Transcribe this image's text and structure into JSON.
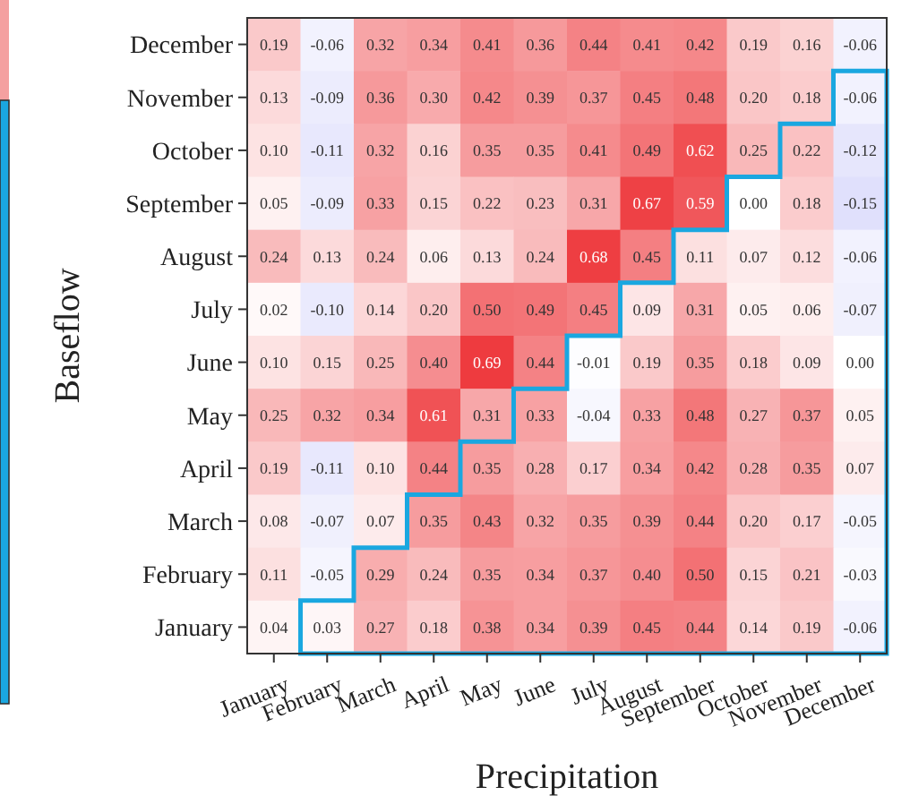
{
  "chart_data": {
    "type": "heatmap",
    "xlabel": "Precipitation",
    "ylabel": "Baseflow",
    "categories": [
      "January",
      "February",
      "March",
      "April",
      "May",
      "June",
      "July",
      "August",
      "September",
      "October",
      "November",
      "December"
    ],
    "y_categories": [
      "December",
      "November",
      "October",
      "September",
      "August",
      "July",
      "June",
      "May",
      "April",
      "March",
      "February",
      "January"
    ],
    "cells": [
      [
        0.19,
        -0.06,
        0.32,
        0.34,
        0.41,
        0.36,
        0.44,
        0.41,
        0.42,
        0.19,
        0.16,
        -0.06
      ],
      [
        0.13,
        -0.09,
        0.36,
        0.3,
        0.42,
        0.39,
        0.37,
        0.45,
        0.48,
        0.2,
        0.18,
        -0.06
      ],
      [
        0.1,
        -0.11,
        0.32,
        0.16,
        0.35,
        0.35,
        0.41,
        0.49,
        0.62,
        0.25,
        0.22,
        -0.12
      ],
      [
        0.05,
        -0.09,
        0.33,
        0.15,
        0.22,
        0.23,
        0.31,
        0.67,
        0.59,
        0.0,
        0.18,
        -0.15
      ],
      [
        0.24,
        0.13,
        0.24,
        0.06,
        0.13,
        0.24,
        0.68,
        0.45,
        0.11,
        0.07,
        0.12,
        -0.06
      ],
      [
        0.02,
        -0.1,
        0.14,
        0.2,
        0.5,
        0.49,
        0.45,
        0.09,
        0.31,
        0.05,
        0.06,
        -0.07
      ],
      [
        0.1,
        0.15,
        0.25,
        0.4,
        0.69,
        0.44,
        -0.01,
        0.19,
        0.35,
        0.18,
        0.09,
        0.0
      ],
      [
        0.25,
        0.32,
        0.34,
        0.61,
        0.31,
        0.33,
        -0.04,
        0.33,
        0.48,
        0.27,
        0.37,
        0.05
      ],
      [
        0.19,
        -0.11,
        0.1,
        0.44,
        0.35,
        0.28,
        0.17,
        0.34,
        0.42,
        0.28,
        0.35,
        0.07
      ],
      [
        0.08,
        -0.07,
        0.07,
        0.35,
        0.43,
        0.32,
        0.35,
        0.39,
        0.44,
        0.2,
        0.17,
        -0.05
      ],
      [
        0.11,
        -0.05,
        0.29,
        0.24,
        0.35,
        0.34,
        0.37,
        0.4,
        0.5,
        0.15,
        0.21,
        -0.03
      ],
      [
        0.04,
        0.03,
        0.27,
        0.18,
        0.38,
        0.34,
        0.39,
        0.45,
        0.44,
        0.14,
        0.19,
        -0.06
      ]
    ],
    "cell_labels": [
      [
        "0.19",
        "-0.06",
        "0.32",
        "0.34",
        "0.41",
        "0.36",
        "0.44",
        "0.41",
        "0.42",
        "0.19",
        "0.16",
        "-0.06"
      ],
      [
        "0.13",
        "-0.09",
        "0.36",
        "0.30",
        "0.42",
        "0.39",
        "0.37",
        "0.45",
        "0.48",
        "0.20",
        "0.18",
        "-0.06"
      ],
      [
        "0.10",
        "-0.11",
        "0.32",
        "0.16",
        "0.35",
        "0.35",
        "0.41",
        "0.49",
        "0.62",
        "0.25",
        "0.22",
        "-0.12"
      ],
      [
        "0.05",
        "-0.09",
        "0.33",
        "0.15",
        "0.22",
        "0.23",
        "0.31",
        "0.67",
        "0.59",
        "0.00",
        "0.18",
        "-0.15"
      ],
      [
        "0.24",
        "0.13",
        "0.24",
        "0.06",
        "0.13",
        "0.24",
        "0.68",
        "0.45",
        "0.11",
        "0.07",
        "0.12",
        "-0.06"
      ],
      [
        "0.02",
        "-0.10",
        "0.14",
        "0.20",
        "0.50",
        "0.49",
        "0.45",
        "0.09",
        "0.31",
        "0.05",
        "0.06",
        "-0.07"
      ],
      [
        "0.10",
        "0.15",
        "0.25",
        "0.40",
        "0.69",
        "0.44",
        "-0.01",
        "0.19",
        "0.35",
        "0.18",
        "0.09",
        "0.00"
      ],
      [
        "0.25",
        "0.32",
        "0.34",
        "0.61",
        "0.31",
        "0.33",
        "-0.04",
        "0.33",
        "0.48",
        "0.27",
        "0.37",
        "0.05"
      ],
      [
        "0.19",
        "-0.11",
        "0.10",
        "0.44",
        "0.35",
        "0.28",
        "0.17",
        "0.34",
        "0.42",
        "0.28",
        "0.35",
        "0.07"
      ],
      [
        "0.08",
        "-0.07",
        "0.07",
        "0.35",
        "0.43",
        "0.32",
        "0.35",
        "0.39",
        "0.44",
        "0.20",
        "0.17",
        "-0.05"
      ],
      [
        "0.11",
        "-0.05",
        "0.29",
        "0.24",
        "0.35",
        "0.34",
        "0.37",
        "0.40",
        "0.50",
        "0.15",
        "0.21",
        "-0.03"
      ],
      [
        "0.04",
        "0.03",
        "0.27",
        "0.18",
        "0.38",
        "0.34",
        "0.39",
        "0.45",
        "0.44",
        "0.14",
        "0.19",
        "-0.06"
      ]
    ]
  }
}
